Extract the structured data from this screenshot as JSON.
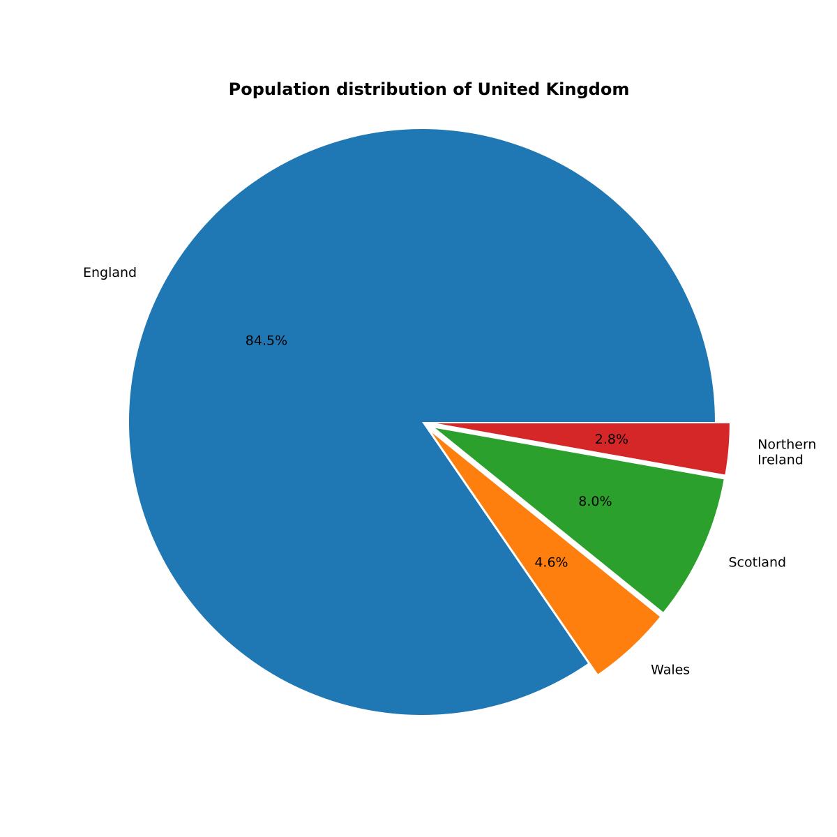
{
  "chart_data": {
    "type": "pie",
    "title": "Population distribution of United Kingdom",
    "slices": [
      {
        "label": "England",
        "percent_label": "84.5%",
        "value": 84.5,
        "color": "#1f77b4",
        "exploded": false
      },
      {
        "label": "Wales",
        "percent_label": "4.6%",
        "value": 4.6,
        "color": "#ff7f0e",
        "exploded": true
      },
      {
        "label": "Scotland",
        "percent_label": "8.0%",
        "value": 8.0,
        "color": "#2ca02c",
        "exploded": true
      },
      {
        "label": "Northern\nIreland",
        "percent_label": "2.8%",
        "value": 2.8,
        "color": "#d62728",
        "exploded": true
      }
    ],
    "start_angle_deg": 0,
    "direction": "counterclockwise"
  }
}
